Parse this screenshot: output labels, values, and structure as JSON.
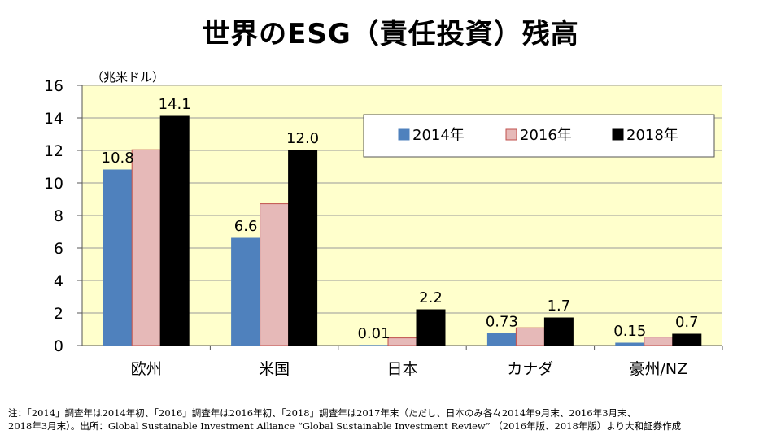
{
  "title": "世界のESG（責任投資）残高",
  "note_line1": "注：「2014」調査年は2014年初、「2016」調査年は2016年初、「2018」調査年は2017年末（ただし、日本のみ各々2014年9月末、2016年3月末、",
  "note_line2": "2018年3月末）。出所：Global Sustainable Investment Alliance “Global Sustainable Investment Review” （2016年版、2018年版）より大和証券作成",
  "colors": {
    "s2014": "#4f81bd",
    "s2016": "#e6b9b8",
    "s2018": "#000000",
    "plot_bg": "#ffffcc",
    "border2016": "#c0504d"
  },
  "chart_data": {
    "type": "bar",
    "title": "世界のESG（責任投資）残高",
    "ylabel": "（兆米ドル）",
    "ylim": [
      0,
      16
    ],
    "yticks": [
      0,
      2,
      4,
      6,
      8,
      10,
      12,
      14,
      16
    ],
    "categories": [
      "欧州",
      "米国",
      "日本",
      "カナダ",
      "豪州/NZ"
    ],
    "series": [
      {
        "name": "2014年",
        "values": [
          10.8,
          6.6,
          0.01,
          0.73,
          0.15
        ]
      },
      {
        "name": "2016年",
        "values": [
          12.04,
          8.72,
          0.47,
          1.09,
          0.52
        ]
      },
      {
        "name": "2018年",
        "values": [
          14.1,
          12.0,
          2.2,
          1.7,
          0.7
        ]
      }
    ],
    "data_labels": [
      {
        "category": 0,
        "series": 0,
        "text": "10.8"
      },
      {
        "category": 0,
        "series": 2,
        "text": "14.1"
      },
      {
        "category": 1,
        "series": 0,
        "text": "6.6"
      },
      {
        "category": 1,
        "series": 2,
        "text": "12.0"
      },
      {
        "category": 2,
        "series": 0,
        "text": "0.01"
      },
      {
        "category": 2,
        "series": 2,
        "text": "2.2"
      },
      {
        "category": 3,
        "series": 0,
        "text": "0.73"
      },
      {
        "category": 3,
        "series": 2,
        "text": "1.7"
      },
      {
        "category": 4,
        "series": 0,
        "text": "0.15"
      },
      {
        "category": 4,
        "series": 2,
        "text": "0.7"
      }
    ],
    "legend": [
      "2014年",
      "2016年",
      "2018年"
    ],
    "legend_position": "top-right",
    "grid": true
  }
}
